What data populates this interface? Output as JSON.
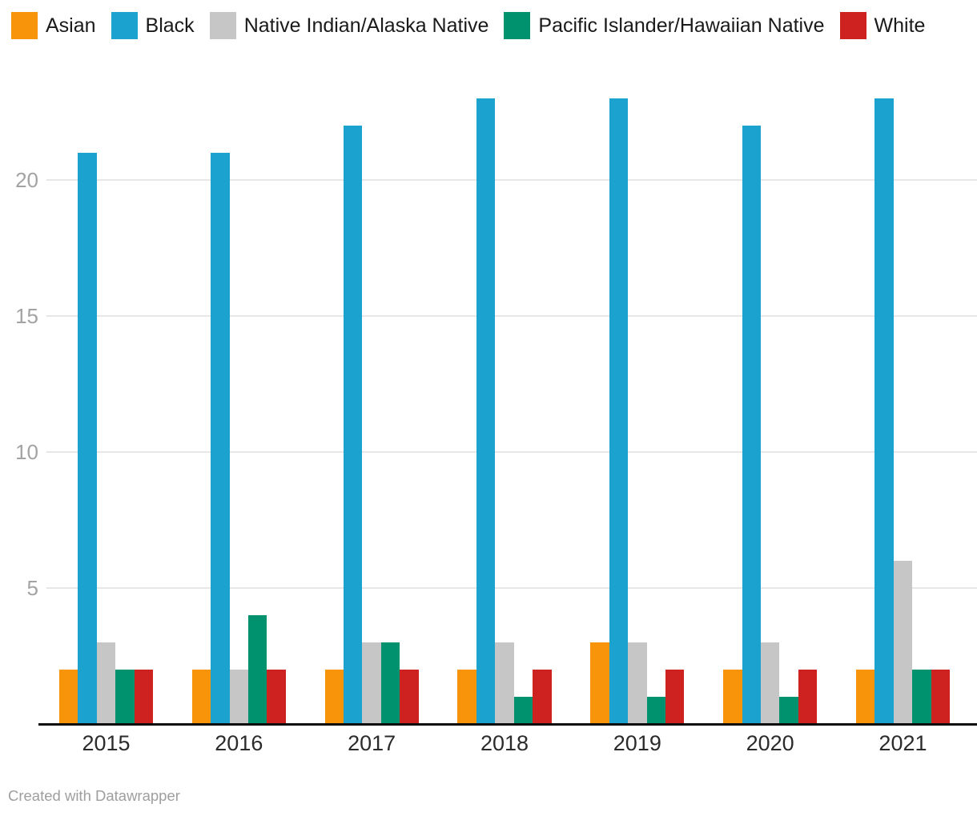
{
  "footer": {
    "text": "Created with Datawrapper"
  },
  "colors": {
    "background": "#ffffff",
    "axis_line": "#0d0d0d",
    "gridline": "#e7e7e7",
    "y_tick_label": "#a3a3a3",
    "x_tick_label": "#2b2b2b",
    "legend_label": "#1a1a1a",
    "footer_text": "#9e9e9e"
  },
  "chart_data": {
    "type": "bar",
    "variant": "grouped-vertical",
    "title": "",
    "xlabel": "",
    "ylabel": "",
    "categories": [
      "2015",
      "2016",
      "2017",
      "2018",
      "2019",
      "2020",
      "2021"
    ],
    "series": [
      {
        "name": "Asian",
        "color": "#f7940a",
        "values": [
          2,
          2,
          2,
          2,
          3,
          2,
          2
        ]
      },
      {
        "name": "Black",
        "color": "#1ba2ce",
        "values": [
          21,
          21,
          22,
          23,
          23,
          22,
          23
        ]
      },
      {
        "name": "Native Indian/Alaska Native",
        "color": "#c6c6c6",
        "values": [
          3,
          2,
          3,
          3,
          3,
          3,
          6
        ]
      },
      {
        "name": "Pacific Islander/Hawaiian Native",
        "color": "#00916e",
        "values": [
          2,
          4,
          3,
          1,
          1,
          1,
          2
        ]
      },
      {
        "name": "White",
        "color": "#ce2221",
        "values": [
          2,
          2,
          2,
          2,
          2,
          2,
          2
        ]
      }
    ],
    "y_ticks": [
      5,
      10,
      15,
      20
    ],
    "ylim": [
      0,
      23.7
    ],
    "grid": "horizontal",
    "legend_position": "top-left"
  }
}
